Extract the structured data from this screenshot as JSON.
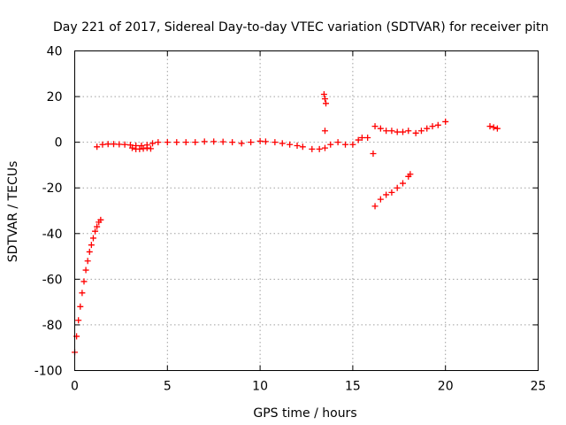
{
  "chart_data": {
    "type": "scatter",
    "title": "Day 221 of 2017, Sidereal Day-to-day VTEC variation (SDTVAR) for receiver pitn",
    "xlabel": "GPS time / hours",
    "ylabel": "SDTVAR / TECUs",
    "xlim": [
      0,
      25
    ],
    "ylim": [
      -100,
      40
    ],
    "xticks": [
      0,
      5,
      10,
      15,
      20,
      25
    ],
    "yticks": [
      -100,
      -80,
      -60,
      -40,
      -20,
      0,
      20,
      40
    ],
    "grid": true,
    "marker": "plus",
    "color": "#ff0000",
    "series": [
      {
        "name": "SDTVAR",
        "segments": [
          {
            "x": [
              0.0,
              0.1,
              0.2,
              0.3,
              0.4,
              0.5,
              0.6,
              0.7,
              0.8,
              0.9,
              1.0,
              1.1,
              1.2,
              1.3,
              1.4
            ],
            "y": [
              -92,
              -85,
              -78,
              -72,
              -66,
              -61,
              -56,
              -52,
              -48,
              -45,
              -42,
              -39,
              -37,
              -35,
              -34
            ]
          },
          {
            "x": [
              1.2,
              1.5,
              1.8,
              2.1,
              2.4,
              2.7,
              3.0,
              3.3,
              3.6,
              3.9,
              4.2,
              4.5,
              5.0,
              5.5,
              6.0,
              6.5,
              7.0,
              7.5,
              8.0,
              8.5,
              9.0,
              9.5,
              10.0,
              10.3,
              10.8,
              11.2,
              11.6,
              12.0,
              12.3
            ],
            "y": [
              -2,
              -1,
              -0.8,
              -0.8,
              -0.9,
              -1,
              -1.2,
              -1.5,
              -1.5,
              -1.2,
              -0.5,
              0,
              0,
              0,
              0,
              0,
              0.3,
              0.3,
              0.2,
              0,
              -0.5,
              0,
              0.5,
              0.3,
              0,
              -0.5,
              -1,
              -1.5,
              -2
            ]
          },
          {
            "x": [
              3.1,
              3.3,
              3.5,
              3.7,
              3.9,
              4.1
            ],
            "y": [
              -2.5,
              -3,
              -3,
              -2.8,
              -2.5,
              -2.8
            ]
          },
          {
            "x": [
              12.8,
              13.2,
              13.5,
              13.8,
              14.2,
              14.6,
              15.0
            ],
            "y": [
              -3,
              -3,
              -2.5,
              -1,
              0,
              -1,
              -1
            ]
          },
          {
            "x": [
              13.45,
              13.5,
              13.55,
              13.5
            ],
            "y": [
              21,
              19,
              17,
              5
            ]
          },
          {
            "x": [
              15.3,
              15.5,
              15.8,
              16.1
            ],
            "y": [
              1,
              2,
              2,
              -5
            ]
          },
          {
            "x": [
              16.2,
              16.5,
              16.8,
              17.1,
              17.4,
              17.7,
              18.0
            ],
            "y": [
              7,
              6,
              5,
              5,
              4.5,
              4.5,
              5
            ]
          },
          {
            "x": [
              16.2,
              16.5,
              16.8,
              17.1,
              17.4,
              17.7,
              18.0,
              18.1
            ],
            "y": [
              -28,
              -25,
              -23,
              -22,
              -20,
              -18,
              -15,
              -14
            ]
          },
          {
            "x": [
              18.4,
              18.7,
              19.0,
              19.3,
              19.6,
              20.0
            ],
            "y": [
              4,
              5,
              6,
              7,
              7.5,
              9
            ]
          },
          {
            "x": [
              22.4,
              22.6,
              22.8
            ],
            "y": [
              7,
              6.5,
              6
            ]
          }
        ]
      }
    ]
  }
}
